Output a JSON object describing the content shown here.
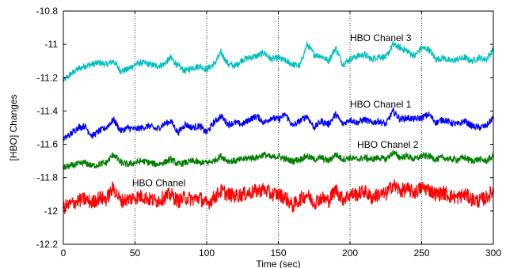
{
  "chart_data": {
    "type": "line",
    "title": "",
    "xlabel": "Time (sec)",
    "ylabel": "[HBO] Changes",
    "xlim": [
      0,
      300
    ],
    "ylim": [
      -12.2,
      -10.8
    ],
    "xticks": [
      0,
      50,
      100,
      150,
      200,
      250,
      300
    ],
    "xtick_labels": [
      "0",
      "50",
      "100",
      "150",
      "200",
      "250",
      "300"
    ],
    "yticks": [
      -10.8,
      -11,
      -11.2,
      -11.4,
      -11.6,
      -11.8,
      -12,
      -12.2
    ],
    "ytick_labels": [
      "-10.8",
      "-11",
      "-11.2",
      "-11.4",
      "-11.6",
      "-11.8",
      "-12",
      "-12.2"
    ],
    "grid": "vertical dotted lines at x ticks",
    "legend": "none (inline text labels)",
    "series": [
      {
        "name": "HBO Chanel 3",
        "label_pos": [
          200,
          -10.98
        ],
        "color": "#00bfbf",
        "noise": 0.02,
        "x": [
          0,
          5,
          10,
          15,
          20,
          25,
          30,
          35,
          40,
          45,
          50,
          55,
          60,
          65,
          70,
          75,
          80,
          85,
          90,
          95,
          100,
          105,
          110,
          115,
          120,
          125,
          130,
          135,
          140,
          145,
          150,
          155,
          160,
          165,
          170,
          175,
          180,
          185,
          190,
          195,
          200,
          205,
          210,
          215,
          220,
          225,
          230,
          235,
          240,
          245,
          250,
          255,
          260,
          265,
          270,
          275,
          280,
          285,
          290,
          295,
          300
        ],
        "y": [
          -11.22,
          -11.18,
          -11.15,
          -11.13,
          -11.12,
          -11.11,
          -11.12,
          -11.1,
          -11.16,
          -11.15,
          -11.12,
          -11.11,
          -11.12,
          -11.13,
          -11.12,
          -11.08,
          -11.13,
          -11.16,
          -11.14,
          -11.13,
          -11.15,
          -11.12,
          -11.05,
          -11.12,
          -11.13,
          -11.09,
          -11.08,
          -11.07,
          -11.05,
          -11.09,
          -11.08,
          -11.1,
          -11.12,
          -11.13,
          -11.0,
          -11.06,
          -11.07,
          -11.1,
          -11.02,
          -11.12,
          -11.09,
          -11.07,
          -11.06,
          -11.09,
          -11.07,
          -11.08,
          -11.0,
          -11.02,
          -11.04,
          -11.07,
          -11.02,
          -11.03,
          -11.09,
          -11.08,
          -11.1,
          -11.09,
          -11.08,
          -11.1,
          -11.08,
          -11.09,
          -11.03
        ]
      },
      {
        "name": "HBO Chanel 1",
        "label_pos": [
          200,
          -11.38
        ],
        "color": "#0000ff",
        "noise": 0.02,
        "x": [
          0,
          5,
          10,
          15,
          20,
          25,
          30,
          35,
          40,
          45,
          50,
          55,
          60,
          65,
          70,
          75,
          80,
          85,
          90,
          95,
          100,
          105,
          110,
          115,
          120,
          125,
          130,
          135,
          140,
          145,
          150,
          155,
          160,
          165,
          170,
          175,
          180,
          185,
          190,
          195,
          200,
          205,
          210,
          215,
          220,
          225,
          230,
          235,
          240,
          245,
          250,
          255,
          260,
          265,
          270,
          275,
          280,
          285,
          290,
          295,
          300
        ],
        "y": [
          -11.57,
          -11.54,
          -11.5,
          -11.49,
          -11.55,
          -11.52,
          -11.5,
          -11.45,
          -11.52,
          -11.5,
          -11.51,
          -11.5,
          -11.49,
          -11.51,
          -11.48,
          -11.46,
          -11.53,
          -11.48,
          -11.5,
          -11.49,
          -11.53,
          -11.47,
          -11.43,
          -11.48,
          -11.47,
          -11.48,
          -11.45,
          -11.43,
          -11.47,
          -11.44,
          -11.45,
          -11.42,
          -11.49,
          -11.46,
          -11.43,
          -11.5,
          -11.46,
          -11.48,
          -11.42,
          -11.48,
          -11.45,
          -11.47,
          -11.45,
          -11.47,
          -11.46,
          -11.48,
          -11.4,
          -11.45,
          -11.44,
          -11.45,
          -11.44,
          -11.42,
          -11.47,
          -11.45,
          -11.47,
          -11.48,
          -11.46,
          -11.49,
          -11.5,
          -11.49,
          -11.44
        ]
      },
      {
        "name": "HBO Chanel 2",
        "label_pos": [
          205,
          -11.62
        ],
        "color": "#007f00",
        "noise": 0.02,
        "x": [
          0,
          5,
          10,
          15,
          20,
          25,
          30,
          35,
          40,
          45,
          50,
          55,
          60,
          65,
          70,
          75,
          80,
          85,
          90,
          95,
          100,
          105,
          110,
          115,
          120,
          125,
          130,
          135,
          140,
          145,
          150,
          155,
          160,
          165,
          170,
          175,
          180,
          185,
          190,
          195,
          200,
          205,
          210,
          215,
          220,
          225,
          230,
          235,
          240,
          245,
          250,
          255,
          260,
          265,
          270,
          275,
          280,
          285,
          290,
          295,
          300
        ],
        "y": [
          -11.74,
          -11.73,
          -11.72,
          -11.71,
          -11.73,
          -11.72,
          -11.71,
          -11.66,
          -11.71,
          -11.72,
          -11.71,
          -11.7,
          -11.71,
          -11.72,
          -11.71,
          -11.69,
          -11.72,
          -11.71,
          -11.7,
          -11.71,
          -11.71,
          -11.7,
          -11.67,
          -11.7,
          -11.7,
          -11.69,
          -11.68,
          -11.68,
          -11.66,
          -11.68,
          -11.67,
          -11.69,
          -11.7,
          -11.69,
          -11.67,
          -11.69,
          -11.68,
          -11.7,
          -11.66,
          -11.69,
          -11.68,
          -11.69,
          -11.68,
          -11.69,
          -11.68,
          -11.69,
          -11.65,
          -11.68,
          -11.67,
          -11.69,
          -11.67,
          -11.67,
          -11.69,
          -11.68,
          -11.69,
          -11.69,
          -11.68,
          -11.7,
          -11.69,
          -11.7,
          -11.67
        ]
      },
      {
        "name": "HBO Chanel",
        "label_pos": [
          48,
          -11.85
        ],
        "color": "#ff0000",
        "noise": 0.045,
        "x": [
          0,
          5,
          10,
          15,
          20,
          25,
          30,
          35,
          40,
          45,
          50,
          55,
          60,
          65,
          70,
          75,
          80,
          85,
          90,
          95,
          100,
          105,
          110,
          115,
          120,
          125,
          130,
          135,
          140,
          145,
          150,
          155,
          160,
          165,
          170,
          175,
          180,
          185,
          190,
          195,
          200,
          205,
          210,
          215,
          220,
          225,
          230,
          235,
          240,
          245,
          250,
          255,
          260,
          265,
          270,
          275,
          280,
          285,
          290,
          295,
          300
        ],
        "y": [
          -11.98,
          -11.96,
          -11.94,
          -11.93,
          -11.95,
          -11.92,
          -11.93,
          -11.86,
          -11.94,
          -11.93,
          -11.92,
          -11.91,
          -11.93,
          -11.94,
          -11.92,
          -11.9,
          -11.94,
          -11.92,
          -11.93,
          -11.92,
          -11.96,
          -11.92,
          -11.88,
          -11.9,
          -11.91,
          -11.9,
          -11.89,
          -11.88,
          -11.87,
          -11.9,
          -11.9,
          -11.92,
          -11.97,
          -11.93,
          -11.9,
          -11.95,
          -11.92,
          -11.94,
          -11.87,
          -11.93,
          -11.9,
          -11.9,
          -11.88,
          -11.92,
          -11.9,
          -11.9,
          -11.84,
          -11.88,
          -11.87,
          -11.89,
          -11.86,
          -11.87,
          -11.9,
          -11.89,
          -11.91,
          -11.92,
          -11.9,
          -11.93,
          -11.94,
          -11.92,
          -11.88
        ]
      }
    ]
  }
}
